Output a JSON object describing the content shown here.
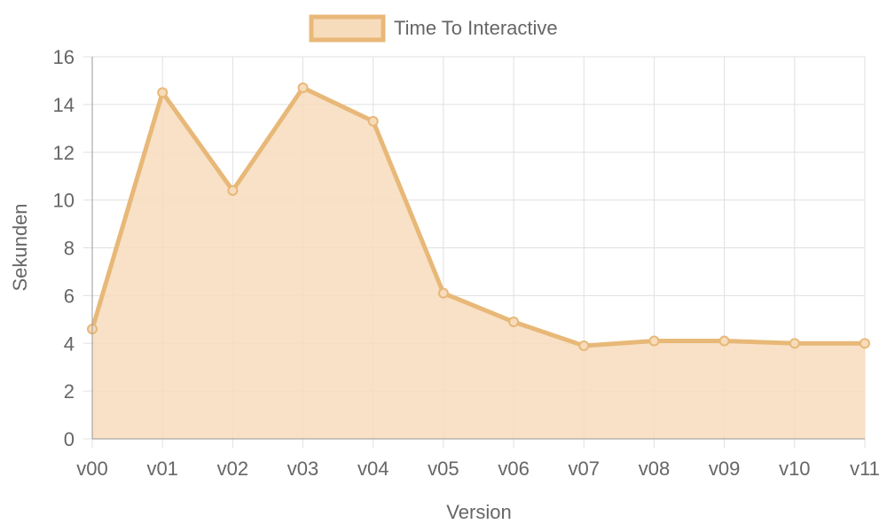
{
  "chart_data": {
    "type": "area",
    "categories": [
      "v00",
      "v01",
      "v02",
      "v03",
      "v04",
      "v05",
      "v06",
      "v07",
      "v08",
      "v09",
      "v10",
      "v11"
    ],
    "series": [
      {
        "name": "Time To Interactive",
        "values": [
          4.6,
          14.5,
          10.4,
          14.7,
          13.3,
          6.1,
          4.9,
          3.9,
          4.1,
          4.1,
          4.0,
          4.0
        ]
      }
    ],
    "xlabel": "Version",
    "ylabel": "Sekunden",
    "ylim": [
      0,
      16
    ],
    "yticks": [
      0,
      2,
      4,
      6,
      8,
      10,
      12,
      14,
      16
    ],
    "grid": true,
    "legend_position": "top",
    "colors": {
      "line": "#e8b878",
      "fill": "#f7dcbc",
      "grid": "#e0e0e0",
      "axis": "#999999",
      "text": "#666666"
    }
  }
}
